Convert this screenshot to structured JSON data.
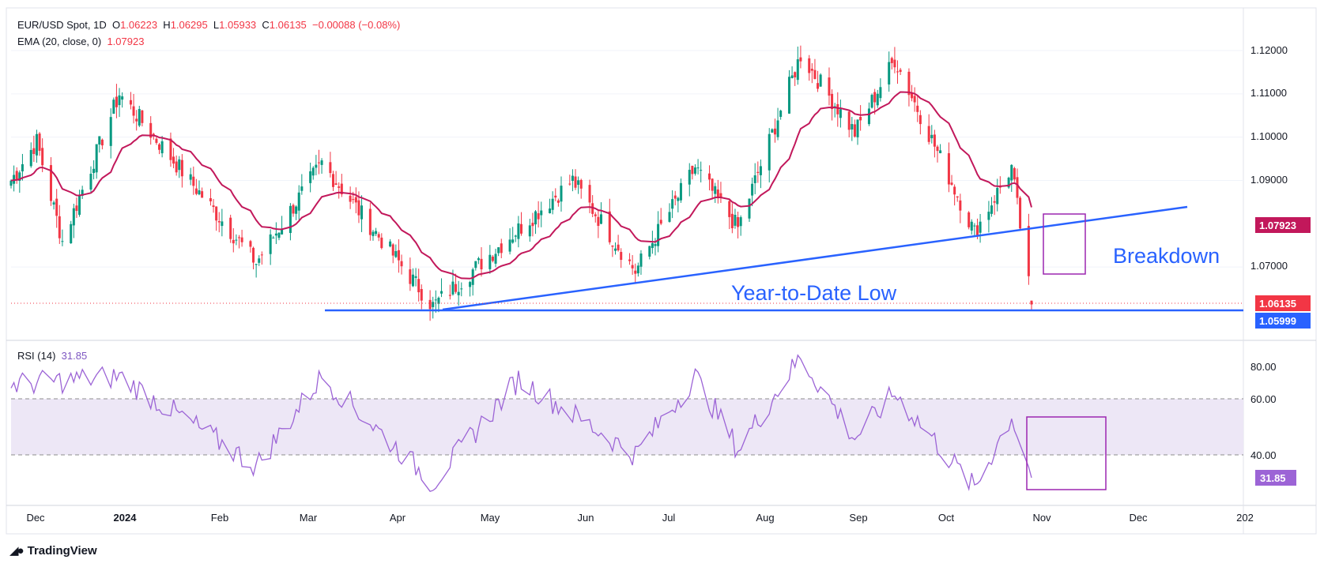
{
  "header": {
    "symbol": "EUR/USD Spot, 1D",
    "o_label": "O",
    "o": "1.06223",
    "h_label": "H",
    "h": "1.06295",
    "l_label": "L",
    "l": "1.05933",
    "c_label": "C",
    "c": "1.06135",
    "change": "−0.00088 (−0.08%)",
    "ema_label": "EMA (20, close, 0)",
    "ema_value": "1.07923"
  },
  "rsi_header": {
    "label": "RSI (14)",
    "value": "31.85"
  },
  "brand": {
    "name": "TradingView"
  },
  "colors": {
    "bull": "#089981",
    "bear": "#f23645",
    "ema": "#c2185b",
    "trendline": "#2962ff",
    "rsi": "#9c64d6",
    "box": "#9c27b0",
    "rsi_band": "#ede7f6"
  },
  "chart_data": [
    {
      "type": "candlestick",
      "title": "EUR/USD Spot, 1D",
      "y_axis_ticks": [
        "1.12000",
        "1.11000",
        "1.10000",
        "1.09000",
        "1.07000"
      ],
      "x_axis_ticks": [
        "Dec",
        "2024",
        "Feb",
        "Mar",
        "Apr",
        "May",
        "Jun",
        "Jul",
        "Aug",
        "Sep",
        "Oct",
        "Nov",
        "Dec",
        "202"
      ],
      "ylim": [
        1.0585,
        1.1225
      ],
      "price_labels": [
        {
          "value": "1.07923",
          "series": "EMA 20"
        },
        {
          "value": "1.06135",
          "series": "Last close"
        },
        {
          "value": "1.05999",
          "series": "Year-to-Date Low"
        }
      ],
      "key_closes": [
        {
          "x": "2023-11-20",
          "close": 1.09
        },
        {
          "x": "2023-11-29",
          "close": 1.099
        },
        {
          "x": "2023-12-08",
          "close": 1.076
        },
        {
          "x": "2023-12-28",
          "close": 1.11
        },
        {
          "x": "2024-02-14",
          "close": 1.071
        },
        {
          "x": "2024-03-08",
          "close": 1.094
        },
        {
          "x": "2024-04-16",
          "close": 1.061
        },
        {
          "x": "2024-06-04",
          "close": 1.09
        },
        {
          "x": "2024-06-26",
          "close": 1.069
        },
        {
          "x": "2024-07-17",
          "close": 1.093
        },
        {
          "x": "2024-08-01",
          "close": 1.079
        },
        {
          "x": "2024-08-23",
          "close": 1.119
        },
        {
          "x": "2024-09-11",
          "close": 1.101
        },
        {
          "x": "2024-09-25",
          "close": 1.118
        },
        {
          "x": "2024-10-23",
          "close": 1.078
        },
        {
          "x": "2024-11-05",
          "close": 1.093
        },
        {
          "x": "2024-11-12",
          "close": 1.06135
        }
      ],
      "annotations": [
        {
          "text": "Year-to-Date Low",
          "value": 1.05999
        },
        {
          "text": "Breakdown"
        }
      ]
    },
    {
      "type": "line",
      "title": "RSI (14)",
      "y_axis_ticks": [
        "80.00",
        "60.00",
        "40.00"
      ],
      "ylim": [
        25,
        85
      ],
      "band": [
        40,
        60
      ],
      "last_value": "31.85",
      "key_values": [
        {
          "x": "2023-11-20",
          "value": 65
        },
        {
          "x": "2023-12-28",
          "value": 68
        },
        {
          "x": "2024-02-14",
          "value": 36
        },
        {
          "x": "2024-03-08",
          "value": 68
        },
        {
          "x": "2024-04-16",
          "value": 30
        },
        {
          "x": "2024-05-16",
          "value": 67
        },
        {
          "x": "2024-06-26",
          "value": 40
        },
        {
          "x": "2024-07-17",
          "value": 68
        },
        {
          "x": "2024-08-01",
          "value": 42
        },
        {
          "x": "2024-08-23",
          "value": 75
        },
        {
          "x": "2024-09-11",
          "value": 46
        },
        {
          "x": "2024-09-25",
          "value": 62
        },
        {
          "x": "2024-10-23",
          "value": 28
        },
        {
          "x": "2024-11-05",
          "value": 54
        },
        {
          "x": "2024-11-12",
          "value": 31.85
        }
      ]
    }
  ]
}
